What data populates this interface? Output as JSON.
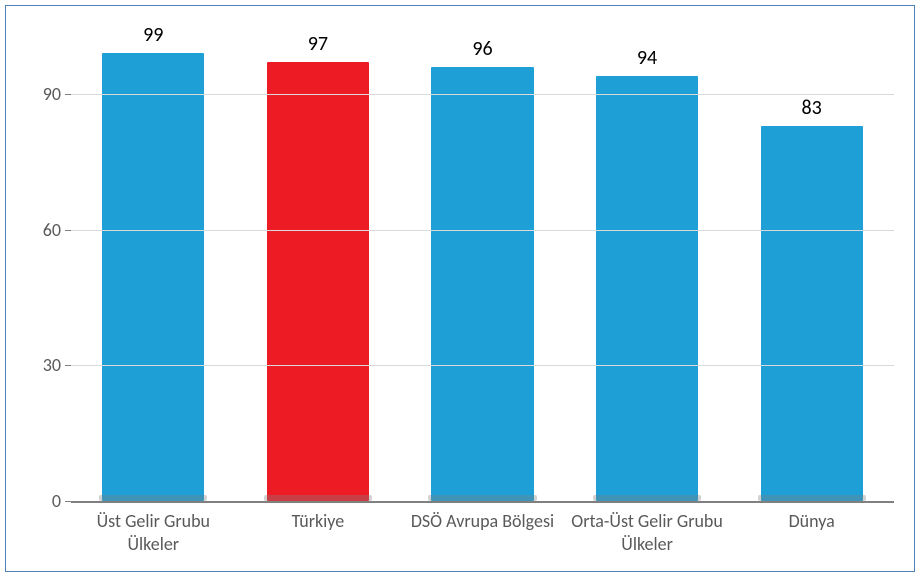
{
  "chart": {
    "type": "bar",
    "background_color": "#ffffff",
    "border_color": "#4f81bd",
    "grid_color": "#d9d9d9",
    "axis_color": "#808080",
    "label_color": "#595959",
    "value_label_color": "#000000",
    "value_fontsize": 20,
    "axis_fontsize": 18,
    "ylim": [
      0,
      105
    ],
    "yticks": [
      0,
      30,
      60,
      90
    ],
    "bar_width_ratio": 0.62,
    "categories": [
      "Üst Gelir Grubu Ülkeler",
      "Türkiye",
      "DSÖ Avrupa Bölgesi",
      "Orta-Üst Gelir Grubu Ülkeler",
      "Dünya"
    ],
    "values": [
      99,
      97,
      96,
      94,
      83
    ],
    "bar_colors": [
      "#1e9fd6",
      "#ed1c24",
      "#1e9fd6",
      "#1e9fd6",
      "#1e9fd6"
    ]
  }
}
